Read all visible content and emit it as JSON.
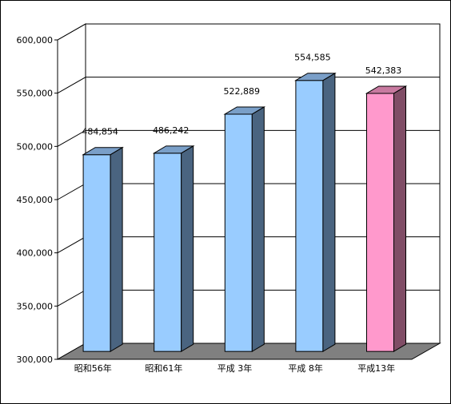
{
  "chart_data": {
    "type": "bar",
    "style": "3d-column",
    "categories": [
      "昭和56年",
      "昭和61年",
      "平成 3年",
      "平成 8年",
      "平成13年"
    ],
    "values": [
      484854,
      486242,
      522889,
      554585,
      542383
    ],
    "value_labels": [
      "484,854",
      "486,242",
      "522,889",
      "554,585",
      "542,383"
    ],
    "ylim": [
      300000,
      600000
    ],
    "yticks": [
      "300,000",
      "350,000",
      "400,000",
      "450,000",
      "500,000",
      "550,000",
      "600,000"
    ],
    "grid": true,
    "legend": "none",
    "colors": {
      "bar_face": "#99ccff",
      "bar_side": "#4a6480",
      "bar_top": "#7a9fc8",
      "highlight_face": "#ff99cc",
      "highlight_side": "#804d66",
      "highlight_top": "#c87aa0",
      "floor": "#808080",
      "wall": "#ffffff"
    },
    "highlight_index": 4
  }
}
